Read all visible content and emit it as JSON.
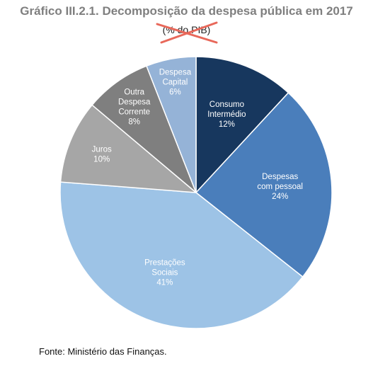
{
  "chart_data": {
    "type": "pie",
    "title": "Gráfico III.2.1. Decomposição da despesa pública em 2017",
    "subtitle": "(% do PIB)",
    "unit": "%",
    "categories": [
      "Consumo Intermédio",
      "Despesas com pessoal",
      "Prestações Sociais",
      "Juros",
      "Outra Despesa Corrente",
      "Despesa Capital"
    ],
    "label_lines": [
      [
        "Consumo",
        "Intermédio"
      ],
      [
        "Despesas",
        "com pessoal"
      ],
      [
        "Prestações",
        "Sociais"
      ],
      [
        "Juros"
      ],
      [
        "Outra",
        "Despesa",
        "Corrente"
      ],
      [
        "Despesa",
        "Capital"
      ]
    ],
    "value_labels": [
      "12%",
      "24%",
      "41%",
      "10%",
      "8%",
      "6%"
    ],
    "values": [
      12,
      24,
      41,
      10,
      8,
      6
    ],
    "colors": [
      "#17375e",
      "#4a7ebb",
      "#9dc3e6",
      "#a6a6a6",
      "#7f7f7f",
      "#95b3d7"
    ],
    "label_colors": [
      "#ffffff",
      "#ffffff",
      "#ffffff",
      "#ffffff",
      "#ffffff",
      "#ffffff"
    ],
    "start_angle_deg": 0,
    "direction": "clockwise",
    "legend": "none",
    "strike_color": "#e8685a"
  },
  "source": "Fonte: Ministério das Finanças."
}
